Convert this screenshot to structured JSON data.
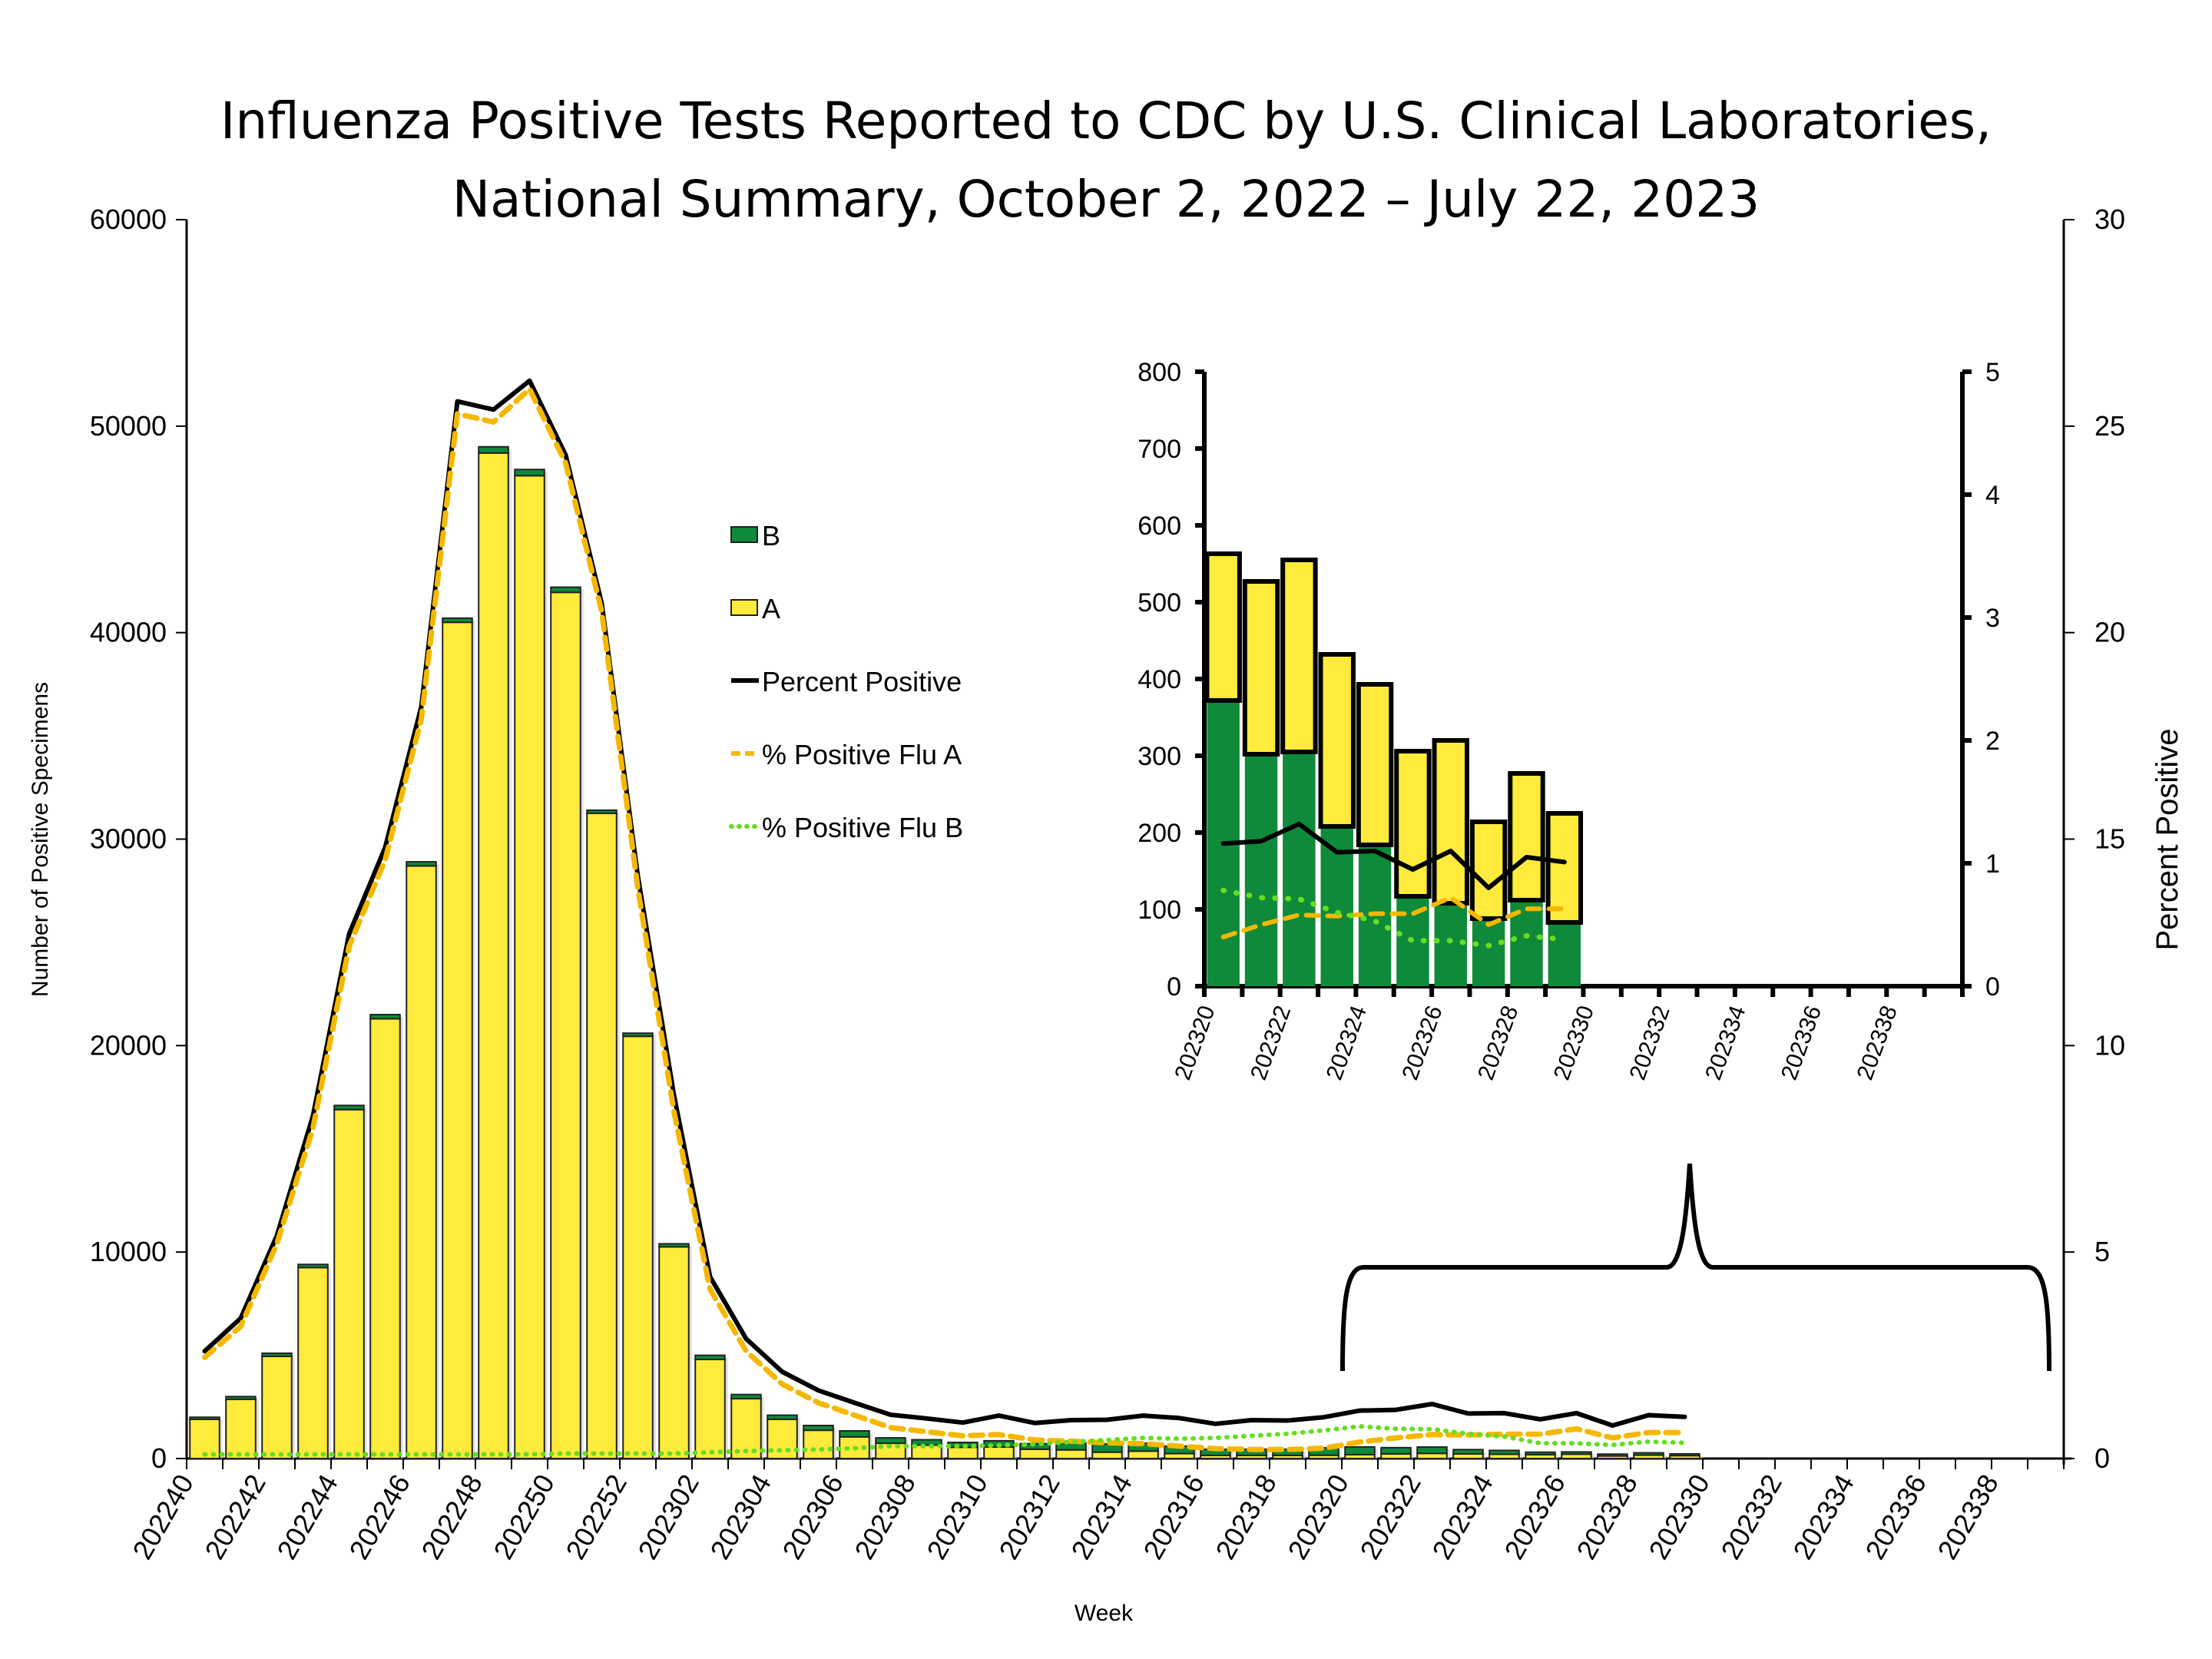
{
  "chart_data": {
    "type": "bar",
    "title_line1": "Influenza Positive Tests Reported to CDC by U.S. Clinical Laboratories,",
    "title_line2": "National Summary, October 2, 2022 – July 22, 2023",
    "xlabel": "Week",
    "ylabel": "Number of Positive Specimens",
    "ylabel_right": "Percent Positive",
    "ylim": [
      0,
      60000
    ],
    "ylim_right": [
      0,
      30
    ],
    "yticks": [
      0,
      10000,
      20000,
      30000,
      40000,
      50000,
      60000
    ],
    "yticks_right": [
      0,
      5,
      10,
      15,
      20,
      25,
      30
    ],
    "x_axis_weeks": [
      "202240",
      "202241",
      "202242",
      "202243",
      "202244",
      "202245",
      "202246",
      "202247",
      "202248",
      "202249",
      "202250",
      "202251",
      "202252",
      "202301",
      "202302",
      "202303",
      "202304",
      "202305",
      "202306",
      "202307",
      "202308",
      "202309",
      "202310",
      "202311",
      "202312",
      "202313",
      "202314",
      "202315",
      "202316",
      "202317",
      "202318",
      "202319",
      "202320",
      "202321",
      "202322",
      "202323",
      "202324",
      "202325",
      "202326",
      "202327",
      "202328",
      "202329",
      "202330",
      "202331",
      "202332",
      "202333",
      "202334",
      "202335",
      "202336",
      "202337",
      "202338",
      "202339"
    ],
    "x_tick_labels": [
      "202240",
      "202242",
      "202244",
      "202246",
      "202248",
      "202250",
      "202252",
      "202302",
      "202304",
      "202306",
      "202308",
      "202310",
      "202312",
      "202314",
      "202316",
      "202318",
      "202320",
      "202322",
      "202324",
      "202326",
      "202328",
      "202330",
      "202332",
      "202334",
      "202336",
      "202338"
    ],
    "weeks": [
      "202240",
      "202241",
      "202242",
      "202243",
      "202244",
      "202245",
      "202246",
      "202247",
      "202248",
      "202249",
      "202250",
      "202251",
      "202252",
      "202301",
      "202302",
      "202303",
      "202304",
      "202305",
      "202306",
      "202307",
      "202308",
      "202309",
      "202310",
      "202311",
      "202312",
      "202313",
      "202314",
      "202315",
      "202316",
      "202317",
      "202318",
      "202319",
      "202320",
      "202321",
      "202322",
      "202323",
      "202324",
      "202325",
      "202326",
      "202327",
      "202328",
      "202329"
    ],
    "series": [
      {
        "name": "A",
        "type": "bar",
        "color": "#ffeb3b",
        "values": [
          1900,
          2870,
          4950,
          9250,
          16900,
          21300,
          28700,
          40500,
          48700,
          47600,
          41950,
          31250,
          20450,
          10250,
          4800,
          2900,
          1900,
          1370,
          1050,
          740,
          650,
          540,
          560,
          450,
          420,
          310,
          360,
          240,
          150,
          150,
          150,
          160,
          191,
          225,
          250,
          224,
          209,
          189,
          212,
          126,
          165,
          142
        ]
      },
      {
        "name": "B",
        "type": "bar",
        "color": "#0e8a3a",
        "values": [
          100,
          130,
          150,
          150,
          200,
          200,
          200,
          200,
          300,
          300,
          250,
          150,
          150,
          150,
          200,
          200,
          200,
          230,
          290,
          260,
          260,
          240,
          300,
          270,
          320,
          400,
          380,
          360,
          300,
          300,
          300,
          360,
          372,
          302,
          305,
          208,
          184,
          117,
          108,
          88,
          112,
          83
        ]
      },
      {
        "name": "Percent Positive",
        "type": "line",
        "axis": "right",
        "color": "#000000",
        "values": [
          2.6,
          3.4,
          5.4,
          8.3,
          12.7,
          14.8,
          18.2,
          25.6,
          25.4,
          26.1,
          24.3,
          20.7,
          14.1,
          8.8,
          4.4,
          2.9,
          2.1,
          1.65,
          1.35,
          1.06,
          0.97,
          0.87,
          1.04,
          0.86,
          0.93,
          0.94,
          1.04,
          0.98,
          0.84,
          0.93,
          0.92,
          1.0,
          1.16,
          1.18,
          1.32,
          1.09,
          1.1,
          0.95,
          1.1,
          0.8,
          1.05,
          1.01
        ]
      },
      {
        "name": "% Positive Flu A",
        "type": "line",
        "axis": "right",
        "color": "#f5b800",
        "values": [
          2.45,
          3.2,
          5.2,
          8.0,
          12.4,
          14.5,
          17.9,
          25.3,
          25.1,
          25.9,
          24.1,
          20.5,
          13.8,
          8.4,
          4.1,
          2.6,
          1.8,
          1.35,
          1.05,
          0.75,
          0.65,
          0.55,
          0.58,
          0.45,
          0.42,
          0.38,
          0.36,
          0.3,
          0.24,
          0.22,
          0.22,
          0.25,
          0.4,
          0.5,
          0.58,
          0.57,
          0.59,
          0.59,
          0.72,
          0.5,
          0.63,
          0.63
        ]
      },
      {
        "name": "% Positive Flu B",
        "type": "line",
        "axis": "right",
        "color": "#66dd22",
        "values": [
          0.1,
          0.1,
          0.1,
          0.1,
          0.1,
          0.1,
          0.1,
          0.1,
          0.1,
          0.1,
          0.12,
          0.12,
          0.12,
          0.12,
          0.15,
          0.18,
          0.2,
          0.22,
          0.25,
          0.3,
          0.3,
          0.3,
          0.32,
          0.35,
          0.4,
          0.45,
          0.5,
          0.48,
          0.5,
          0.55,
          0.6,
          0.68,
          0.78,
          0.72,
          0.71,
          0.6,
          0.53,
          0.37,
          0.37,
          0.33,
          0.41,
          0.38
        ]
      }
    ],
    "legend": [
      {
        "label": "B",
        "kind": "box",
        "color": "#0e8a3a"
      },
      {
        "label": "A",
        "kind": "box",
        "color": "#ffeb3b"
      },
      {
        "label": "Percent Positive",
        "kind": "solid",
        "color": "#000000"
      },
      {
        "label": "% Positive Flu A",
        "kind": "dash",
        "color": "#f5b800"
      },
      {
        "label": "% Positive Flu B",
        "kind": "dot",
        "color": "#66dd22"
      }
    ],
    "legend_position": "center",
    "grid": false,
    "inset": {
      "description": "zoomed view of weeks 202320 to 202339",
      "ylim": [
        0,
        800
      ],
      "yticks": [
        0,
        100,
        200,
        300,
        400,
        500,
        600,
        700,
        800
      ],
      "ylim_right": [
        0,
        5
      ],
      "yticks_right": [
        0,
        1,
        2,
        3,
        4,
        5
      ],
      "x_axis_weeks": [
        "202320",
        "202321",
        "202322",
        "202323",
        "202324",
        "202325",
        "202326",
        "202327",
        "202328",
        "202329",
        "202330",
        "202331",
        "202332",
        "202333",
        "202334",
        "202335",
        "202336",
        "202337",
        "202338",
        "202339"
      ],
      "x_tick_labels": [
        "202320",
        "202322",
        "202324",
        "202326",
        "202328",
        "202330",
        "202332",
        "202334",
        "202336",
        "202338"
      ],
      "weeks": [
        "202320",
        "202321",
        "202322",
        "202323",
        "202324",
        "202325",
        "202326",
        "202327",
        "202328",
        "202329"
      ],
      "A": [
        191,
        225,
        250,
        224,
        209,
        189,
        212,
        126,
        165,
        142
      ],
      "B": [
        372,
        302,
        305,
        208,
        184,
        117,
        108,
        88,
        112,
        83
      ],
      "percent_positive": [
        1.16,
        1.18,
        1.32,
        1.09,
        1.1,
        0.95,
        1.1,
        0.8,
        1.05,
        1.01
      ],
      "pct_flu_a": [
        0.4,
        0.5,
        0.58,
        0.57,
        0.59,
        0.59,
        0.72,
        0.5,
        0.63,
        0.63
      ],
      "pct_flu_b": [
        0.78,
        0.72,
        0.71,
        0.6,
        0.53,
        0.37,
        0.37,
        0.33,
        0.41,
        0.38
      ]
    }
  }
}
